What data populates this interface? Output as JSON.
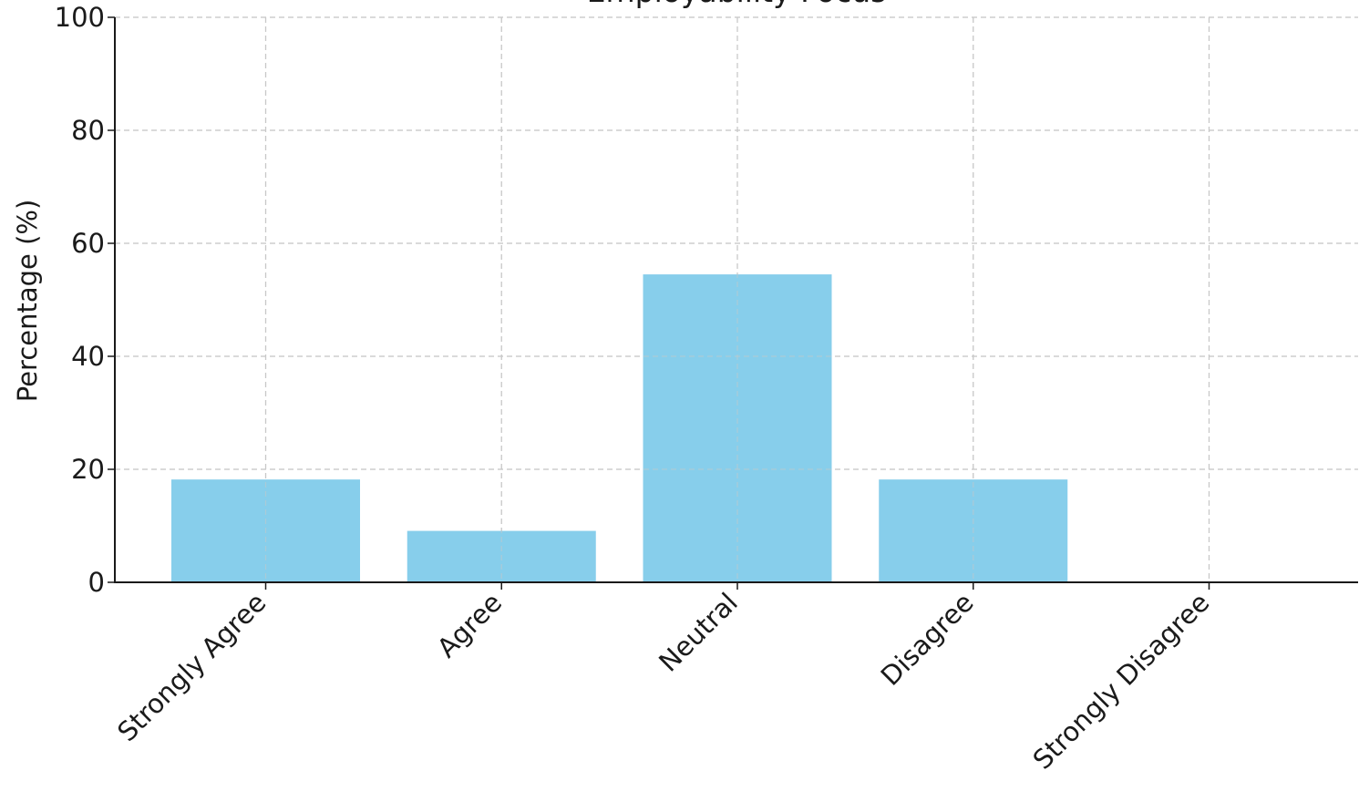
{
  "chart_data": {
    "type": "bar",
    "title": "Employability Focus",
    "xlabel": "",
    "ylabel": "Percentage (%)",
    "categories": [
      "Strongly Agree",
      "Agree",
      "Neutral",
      "Disagree",
      "Strongly Disagree"
    ],
    "values": [
      18.2,
      9.1,
      54.5,
      18.2,
      0
    ],
    "ylim": [
      0,
      100
    ],
    "yticks": [
      "0",
      "20",
      "40",
      "60",
      "80",
      "100"
    ],
    "grid": true,
    "legend": "none",
    "bar_color": "#87CEEB"
  }
}
